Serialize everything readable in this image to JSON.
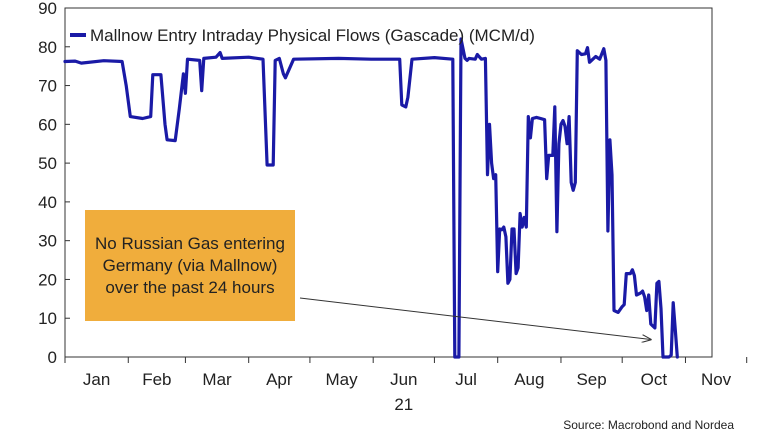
{
  "chart_data": {
    "type": "line",
    "title": "",
    "xlabel": "",
    "ylabel": "",
    "ylim": [
      0,
      90
    ],
    "yticks": [
      0,
      10,
      20,
      30,
      40,
      50,
      60,
      70,
      80,
      90
    ],
    "x_tick_labels": [
      "Jan",
      "Feb",
      "Mar",
      "Apr",
      "May",
      "Jun",
      "Jul",
      "Aug",
      "Sep",
      "Oct",
      "Nov"
    ],
    "year_label": "21",
    "grid": false,
    "legend_position": "top-left",
    "series": [
      {
        "name": "Mallnow Entry Intraday Physical Flows (Gascade) (MCM/d)",
        "color": "#1a1aa6",
        "points": [
          [
            "2021-01-01",
            76.2
          ],
          [
            "2021-01-06",
            76.3
          ],
          [
            "2021-01-09",
            75.8
          ],
          [
            "2021-01-20",
            76.4
          ],
          [
            "2021-01-29",
            76.2
          ],
          [
            "2021-01-31",
            70
          ],
          [
            "2021-02-02",
            62
          ],
          [
            "2021-02-08",
            61.5
          ],
          [
            "2021-02-12",
            62
          ],
          [
            "2021-02-13",
            72.8
          ],
          [
            "2021-02-17",
            72.8
          ],
          [
            "2021-02-19",
            60
          ],
          [
            "2021-02-20",
            56
          ],
          [
            "2021-02-24",
            55.8
          ],
          [
            "2021-02-25",
            60
          ],
          [
            "2021-02-26",
            64
          ],
          [
            "2021-02-28",
            73
          ],
          [
            "2021-03-01",
            68
          ],
          [
            "2021-03-02",
            76.8
          ],
          [
            "2021-03-08",
            76.5
          ],
          [
            "2021-03-09",
            68.7
          ],
          [
            "2021-03-10",
            77
          ],
          [
            "2021-03-16",
            77.3
          ],
          [
            "2021-03-18",
            78.5
          ],
          [
            "2021-03-19",
            77
          ],
          [
            "2021-04-01",
            77.3
          ],
          [
            "2021-04-08",
            76.8
          ],
          [
            "2021-04-10",
            49.5
          ],
          [
            "2021-04-13",
            49.5
          ],
          [
            "2021-04-14",
            76.5
          ],
          [
            "2021-04-16",
            77
          ],
          [
            "2021-04-18",
            73
          ],
          [
            "2021-04-19",
            72
          ],
          [
            "2021-04-23",
            76.8
          ],
          [
            "2021-05-15",
            77
          ],
          [
            "2021-05-31",
            76.8
          ],
          [
            "2021-06-14",
            76.8
          ],
          [
            "2021-06-15",
            65
          ],
          [
            "2021-06-17",
            64.5
          ],
          [
            "2021-06-18",
            67
          ],
          [
            "2021-06-20",
            76.8
          ],
          [
            "2021-07-01",
            77.2
          ],
          [
            "2021-07-10",
            76.8
          ],
          [
            "2021-07-11",
            0
          ],
          [
            "2021-07-13",
            0
          ],
          [
            "2021-07-14",
            82
          ],
          [
            "2021-07-16",
            77
          ],
          [
            "2021-07-17",
            76.5
          ],
          [
            "2021-07-18",
            77
          ],
          [
            "2021-07-21",
            76.8
          ],
          [
            "2021-07-22",
            78
          ],
          [
            "2021-07-24",
            76.8
          ],
          [
            "2021-07-26",
            77
          ],
          [
            "2021-07-27",
            47
          ],
          [
            "2021-07-28",
            60
          ],
          [
            "2021-07-29",
            50
          ],
          [
            "2021-07-30",
            46
          ],
          [
            "2021-07-31",
            47
          ],
          [
            "2021-08-01",
            22
          ],
          [
            "2021-08-02",
            33
          ],
          [
            "2021-08-03",
            32.8
          ],
          [
            "2021-08-04",
            33.5
          ],
          [
            "2021-08-05",
            31
          ],
          [
            "2021-08-06",
            19
          ],
          [
            "2021-08-07",
            20
          ],
          [
            "2021-08-08",
            33
          ],
          [
            "2021-08-09",
            33
          ],
          [
            "2021-08-10",
            21.5
          ],
          [
            "2021-08-11",
            23
          ],
          [
            "2021-08-12",
            37
          ],
          [
            "2021-08-13",
            33.5
          ],
          [
            "2021-08-14",
            36
          ],
          [
            "2021-08-15",
            33.5
          ],
          [
            "2021-08-16",
            62
          ],
          [
            "2021-08-17",
            56.5
          ],
          [
            "2021-08-18",
            61.5
          ],
          [
            "2021-08-20",
            61.8
          ],
          [
            "2021-08-22",
            61.5
          ],
          [
            "2021-08-24",
            61.2
          ],
          [
            "2021-08-25",
            46
          ],
          [
            "2021-08-26",
            52
          ],
          [
            "2021-08-28",
            52
          ],
          [
            "2021-08-29",
            64.5
          ],
          [
            "2021-08-30",
            32.3
          ],
          [
            "2021-08-31",
            55
          ],
          [
            "2021-09-01",
            60
          ],
          [
            "2021-09-02",
            61
          ],
          [
            "2021-09-03",
            59.5
          ],
          [
            "2021-09-04",
            55
          ],
          [
            "2021-09-05",
            62
          ],
          [
            "2021-09-06",
            45
          ],
          [
            "2021-09-07",
            43
          ],
          [
            "2021-09-08",
            45
          ],
          [
            "2021-09-09",
            79
          ],
          [
            "2021-09-11",
            78
          ],
          [
            "2021-09-13",
            78.2
          ],
          [
            "2021-09-14",
            79.8
          ],
          [
            "2021-09-15",
            76
          ],
          [
            "2021-09-18",
            77.5
          ],
          [
            "2021-09-20",
            76.8
          ],
          [
            "2021-09-22",
            79.5
          ],
          [
            "2021-09-23",
            76.5
          ],
          [
            "2021-09-24",
            32.5
          ],
          [
            "2021-09-25",
            56
          ],
          [
            "2021-09-26",
            47
          ],
          [
            "2021-09-27",
            12
          ],
          [
            "2021-09-29",
            11.5
          ],
          [
            "2021-10-01",
            13
          ],
          [
            "2021-10-02",
            13.5
          ],
          [
            "2021-10-03",
            21.5
          ],
          [
            "2021-10-05",
            21.5
          ],
          [
            "2021-10-06",
            22.5
          ],
          [
            "2021-10-07",
            21
          ],
          [
            "2021-10-08",
            16
          ],
          [
            "2021-10-10",
            16.5
          ],
          [
            "2021-10-11",
            17
          ],
          [
            "2021-10-12",
            15.5
          ],
          [
            "2021-10-13",
            12
          ],
          [
            "2021-10-14",
            16
          ],
          [
            "2021-10-15",
            8.5
          ],
          [
            "2021-10-16",
            8
          ],
          [
            "2021-10-17",
            7.5
          ],
          [
            "2021-10-18",
            19
          ],
          [
            "2021-10-19",
            19.5
          ],
          [
            "2021-10-20",
            12.5
          ],
          [
            "2021-10-21",
            0
          ],
          [
            "2021-10-24",
            0
          ],
          [
            "2021-10-25",
            0.5
          ],
          [
            "2021-10-26",
            14
          ],
          [
            "2021-10-27",
            7
          ],
          [
            "2021-10-28",
            0
          ]
        ]
      }
    ],
    "annotation": {
      "lines": [
        "No Russian Gas entering",
        "Germany (via Mallnow)",
        "over the past 24 hours"
      ],
      "arrow_to": [
        "2021-10-15",
        4.5
      ]
    },
    "source": "Source: Macrobond and Nordea"
  },
  "colors": {
    "series": "#1a1aa6",
    "callout_fill": "#f0ad3c",
    "axis": "#333333"
  }
}
